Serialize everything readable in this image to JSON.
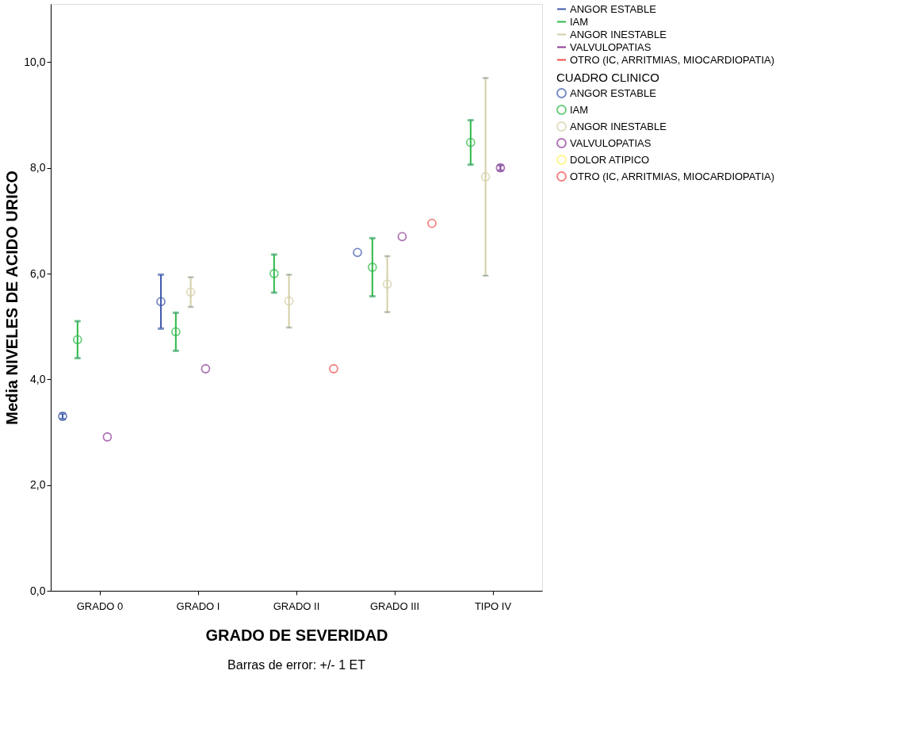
{
  "chart_data": {
    "type": "scatter",
    "xlabel": "GRADO DE SEVERIDAD",
    "ylabel": "Media NIVELES DE ACIDO URICO",
    "legend_title": "CUADRO CLINICO",
    "categories": [
      "GRADO 0",
      "GRADO I",
      "GRADO II",
      "GRADO III",
      "TIPO IV"
    ],
    "series": [
      {
        "name": "ANGOR ESTABLE",
        "color": "#3e58ac",
        "values": [
          3.3,
          5.47,
          null,
          6.4,
          null
        ],
        "errors": [
          0.05,
          0.51,
          null,
          null,
          null
        ]
      },
      {
        "name": "IAM",
        "color": "#2eb848",
        "values": [
          4.75,
          4.9,
          6.0,
          6.12,
          8.48
        ],
        "errors": [
          0.35,
          0.36,
          0.36,
          0.55,
          0.42
        ]
      },
      {
        "name": "ANGOR INESTABLE",
        "color": "#d4cea4",
        "values": [
          null,
          5.65,
          5.48,
          5.8,
          7.83
        ],
        "errors": [
          null,
          0.28,
          0.5,
          0.53,
          1.87
        ]
      },
      {
        "name": "VALVULOPATIAS",
        "color": "#8c3c96",
        "values": [
          2.91,
          4.2,
          null,
          6.7,
          8.0
        ],
        "errors": [
          null,
          null,
          null,
          null,
          0.05
        ]
      },
      {
        "name": "DOLOR ATIPICO",
        "color": "#fff15a",
        "values": [
          null,
          null,
          null,
          null,
          null
        ]
      },
      {
        "name": "OTRO (IC, ARRITMIAS, MIOCARDIOPATIA)",
        "color": "#f34b4b",
        "values": [
          null,
          null,
          4.2,
          6.95,
          null
        ],
        "errors": [
          null,
          null,
          null,
          null,
          null
        ]
      }
    ],
    "ylim": [
      0,
      11.1
    ],
    "yticks": [
      {
        "value": 0,
        "label": "0,0"
      },
      {
        "value": 2,
        "label": "2,0"
      },
      {
        "value": 4,
        "label": "4,0"
      },
      {
        "value": 6,
        "label": "6,0"
      },
      {
        "value": 8,
        "label": "8,0"
      },
      {
        "value": 10,
        "label": "10,0"
      }
    ],
    "grid": false,
    "legend": "right",
    "marker": "circle",
    "annotations": [
      "Barras de error: +/- 1 ET"
    ]
  }
}
